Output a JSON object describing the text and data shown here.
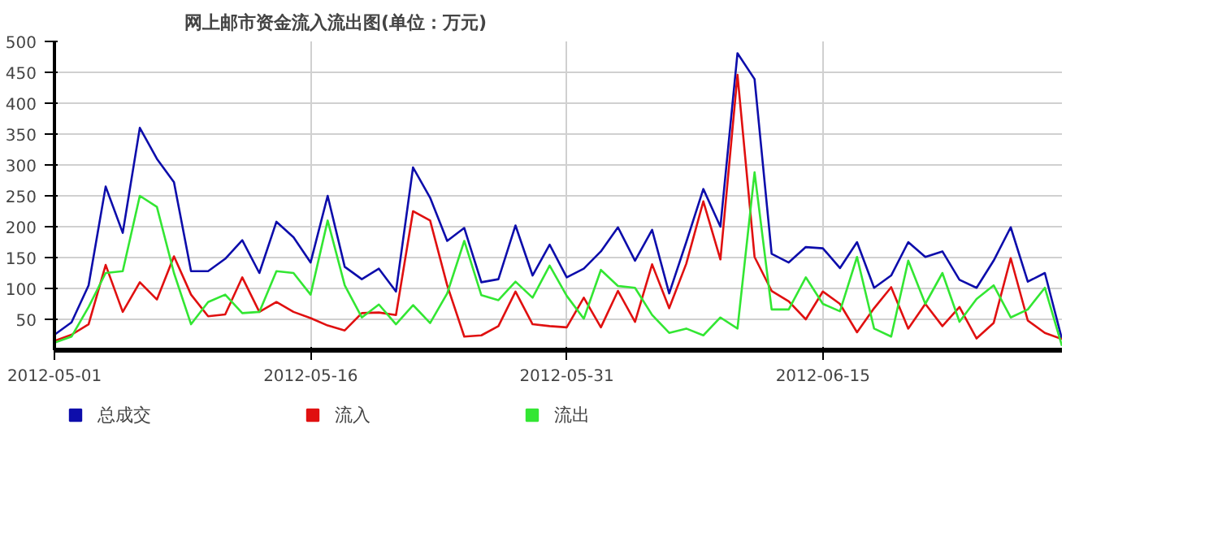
{
  "chart_data": {
    "type": "line",
    "title": "网上邮市资金流入流出图(单位：万元)",
    "x": [
      "2012-05-01",
      "2012-05-02",
      "2012-05-03",
      "2012-05-04",
      "2012-05-05",
      "2012-05-06",
      "2012-05-07",
      "2012-05-08",
      "2012-05-09",
      "2012-05-10",
      "2012-05-11",
      "2012-05-12",
      "2012-05-13",
      "2012-05-14",
      "2012-05-15",
      "2012-05-16",
      "2012-05-17",
      "2012-05-18",
      "2012-05-19",
      "2012-05-20",
      "2012-05-21",
      "2012-05-22",
      "2012-05-23",
      "2012-05-24",
      "2012-05-25",
      "2012-05-26",
      "2012-05-27",
      "2012-05-28",
      "2012-05-29",
      "2012-05-30",
      "2012-05-31",
      "2012-06-01",
      "2012-06-02",
      "2012-06-03",
      "2012-06-04",
      "2012-06-05",
      "2012-06-06",
      "2012-06-07",
      "2012-06-08",
      "2012-06-09",
      "2012-06-10",
      "2012-06-11",
      "2012-06-12",
      "2012-06-13",
      "2012-06-14",
      "2012-06-15",
      "2012-06-16",
      "2012-06-17",
      "2012-06-18",
      "2012-06-19",
      "2012-06-20",
      "2012-06-21",
      "2012-06-22",
      "2012-06-23",
      "2012-06-24",
      "2012-06-25",
      "2012-06-26",
      "2012-06-27",
      "2012-06-28",
      "2012-06-29"
    ],
    "series": [
      {
        "name": "总成交",
        "color": "#0d0dab",
        "values": [
          25,
          45,
          105,
          265,
          190,
          360,
          310,
          272,
          128,
          128,
          148,
          178,
          125,
          208,
          183,
          142,
          250,
          135,
          115,
          132,
          95,
          296,
          247,
          177,
          198,
          110,
          115,
          202,
          121,
          171,
          118,
          132,
          160,
          199,
          145,
          195,
          92,
          175,
          261,
          200,
          481,
          439,
          156,
          142,
          167,
          165,
          133,
          175,
          101,
          121,
          175,
          151,
          160,
          114,
          101,
          145,
          199,
          111,
          125,
          18
        ]
      },
      {
        "name": "流入",
        "color": "#e01010",
        "values": [
          15,
          25,
          42,
          138,
          62,
          110,
          82,
          152,
          90,
          55,
          58,
          118,
          62,
          78,
          62,
          52,
          40,
          32,
          60,
          61,
          57,
          225,
          210,
          105,
          22,
          24,
          39,
          95,
          42,
          39,
          37,
          85,
          37,
          96,
          46,
          139,
          68,
          140,
          241,
          147,
          446,
          151,
          96,
          79,
          50,
          95,
          75,
          29,
          68,
          102,
          35,
          75,
          39,
          70,
          19,
          44,
          149,
          48,
          28,
          18
        ]
      },
      {
        "name": "流出",
        "color": "#33e633",
        "values": [
          12,
          22,
          70,
          125,
          128,
          250,
          232,
          125,
          42,
          78,
          90,
          60,
          62,
          128,
          125,
          90,
          210,
          105,
          53,
          74,
          42,
          73,
          44,
          92,
          177,
          89,
          81,
          111,
          85,
          137,
          88,
          51,
          130,
          104,
          101,
          57,
          28,
          35,
          24,
          53,
          35,
          288,
          66,
          66,
          118,
          75,
          63,
          151,
          35,
          22,
          145,
          75,
          125,
          46,
          83,
          105,
          53,
          66,
          101,
          7
        ]
      }
    ],
    "xlim": [
      "2012-05-01",
      "2012-06-29"
    ],
    "xticks": [
      {
        "value": "2012-05-01",
        "label": "2012-05-01"
      },
      {
        "value": "2012-05-16",
        "label": "2012-05-16"
      },
      {
        "value": "2012-05-31",
        "label": "2012-05-31"
      },
      {
        "value": "2012-06-15",
        "label": "2012-06-15"
      }
    ],
    "ylim": [
      0,
      500
    ],
    "yticks": [
      50,
      100,
      150,
      200,
      250,
      300,
      350,
      400,
      450,
      500
    ],
    "grid": true,
    "legend": "bottom",
    "marker": "none",
    "line_style": "solid"
  }
}
